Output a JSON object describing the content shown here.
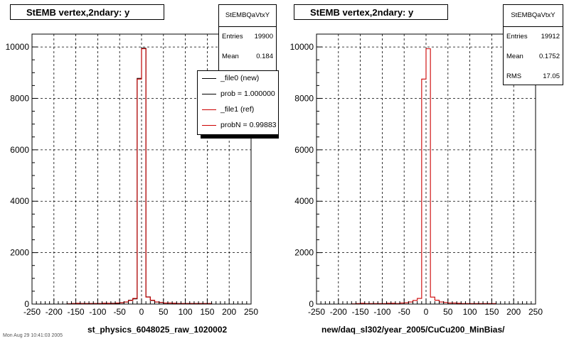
{
  "panels": [
    {
      "title": "StEMB  vertex,2ndary: y",
      "stats": {
        "name": "StEMBQaVtxY",
        "rows": [
          {
            "label": "Entries",
            "value": "19900"
          },
          {
            "label": "Mean",
            "value": "0.184"
          }
        ]
      },
      "legend": [
        {
          "text": "_file0 (new)",
          "color": "#000000"
        },
        {
          "text": "prob = 1.000000",
          "color": "#000000"
        },
        {
          "text": "_file1 (ref)",
          "color": "#cc0000"
        },
        {
          "text": "probN = 0.99883",
          "color": "#cc0000"
        }
      ],
      "xtitle": "st_physics_6048025_raw_1020002"
    },
    {
      "title": "StEMB  vertex,2ndary: y",
      "stats": {
        "name": "StEMBQaVtxY",
        "rows": [
          {
            "label": "Entries",
            "value": "19912"
          },
          {
            "label": "Mean",
            "value": "0.1752"
          },
          {
            "label": "RMS",
            "value": "17.05"
          }
        ]
      },
      "legend": [],
      "xtitle": "new/daq_sl302/year_2005/CuCu200_MinBias/"
    }
  ],
  "footer": "Mon Aug 29 10:41:03 2005",
  "chart_data": [
    {
      "type": "histogram",
      "title": "StEMB  vertex,2ndary: y",
      "xlabel": "st_physics_6048025_raw_1020002",
      "ylabel": "",
      "xlim": [
        -250,
        250
      ],
      "ylim": [
        0,
        10500
      ],
      "xticks": [
        -250,
        -200,
        -150,
        -100,
        -50,
        0,
        50,
        100,
        150,
        200,
        250
      ],
      "yticks": [
        0,
        2000,
        4000,
        6000,
        8000,
        10000
      ],
      "grid": true,
      "bin_edges": [
        -250,
        -240,
        -230,
        -220,
        -210,
        -200,
        -190,
        -180,
        -170,
        -160,
        -150,
        -140,
        -130,
        -120,
        -110,
        -100,
        -90,
        -80,
        -70,
        -60,
        -50,
        -40,
        -30,
        -20,
        -10,
        0,
        10,
        20,
        30,
        40,
        50,
        60,
        70,
        80,
        90,
        100,
        110,
        120,
        130,
        140,
        150,
        160,
        170,
        180,
        190,
        200,
        210,
        220,
        230,
        240,
        250
      ],
      "series": [
        {
          "name": "_file0 (new)",
          "color": "#000000",
          "values": [
            0,
            0,
            0,
            0,
            0,
            0,
            0,
            0,
            10,
            20,
            25,
            20,
            20,
            20,
            20,
            20,
            30,
            20,
            30,
            30,
            50,
            80,
            150,
            200,
            8780,
            9950,
            280,
            140,
            80,
            60,
            40,
            40,
            30,
            20,
            20,
            20,
            20,
            20,
            20,
            20,
            20,
            0,
            0,
            0,
            0,
            0,
            0,
            0,
            0,
            0
          ]
        },
        {
          "name": "_file1 (ref)",
          "color": "#cc0000",
          "values": [
            0,
            0,
            0,
            0,
            0,
            0,
            0,
            0,
            10,
            20,
            30,
            20,
            20,
            20,
            20,
            20,
            30,
            30,
            20,
            40,
            50,
            80,
            140,
            220,
            8750,
            9930,
            270,
            150,
            80,
            60,
            40,
            40,
            30,
            20,
            20,
            20,
            20,
            20,
            20,
            20,
            20,
            0,
            0,
            0,
            0,
            0,
            0,
            0,
            0,
            0
          ]
        }
      ]
    },
    {
      "type": "histogram",
      "title": "StEMB  vertex,2ndary: y",
      "xlabel": "new/daq_sl302/year_2005/CuCu200_MinBias/",
      "ylabel": "",
      "xlim": [
        -250,
        250
      ],
      "ylim": [
        0,
        10500
      ],
      "xticks": [
        -250,
        -200,
        -150,
        -100,
        -50,
        0,
        50,
        100,
        150,
        200,
        250
      ],
      "yticks": [
        0,
        2000,
        4000,
        6000,
        8000,
        10000
      ],
      "grid": true,
      "bin_edges": [
        -250,
        -240,
        -230,
        -220,
        -210,
        -200,
        -190,
        -180,
        -170,
        -160,
        -150,
        -140,
        -130,
        -120,
        -110,
        -100,
        -90,
        -80,
        -70,
        -60,
        -50,
        -40,
        -30,
        -20,
        -10,
        0,
        10,
        20,
        30,
        40,
        50,
        60,
        70,
        80,
        90,
        100,
        110,
        120,
        130,
        140,
        150,
        160,
        170,
        180,
        190,
        200,
        210,
        220,
        230,
        240,
        250
      ],
      "series": [
        {
          "name": "",
          "color": "#cc0000",
          "values": [
            0,
            0,
            0,
            0,
            0,
            0,
            0,
            0,
            10,
            20,
            30,
            20,
            20,
            20,
            20,
            20,
            30,
            30,
            20,
            40,
            50,
            80,
            140,
            220,
            8750,
            9930,
            270,
            150,
            80,
            60,
            40,
            40,
            30,
            20,
            20,
            20,
            20,
            20,
            20,
            20,
            20,
            0,
            0,
            0,
            0,
            0,
            0,
            0,
            0,
            0
          ]
        }
      ]
    }
  ]
}
